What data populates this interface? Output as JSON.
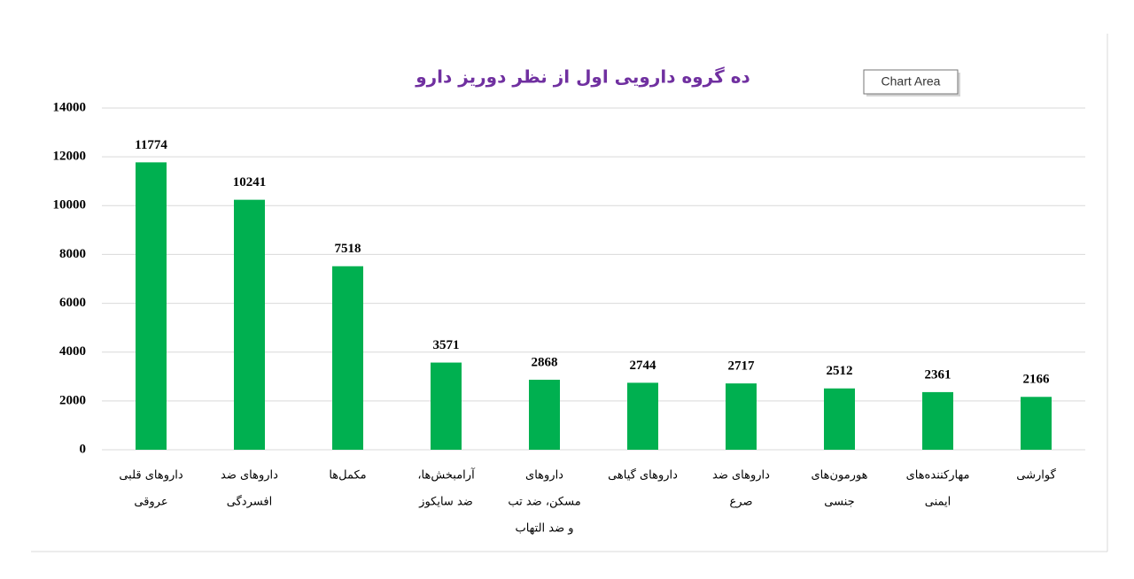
{
  "chart_data": {
    "type": "bar",
    "title": "ده گروه دارویی اول از نظر دوریز دارو",
    "tooltip": "Chart Area",
    "categories": [
      [
        "داروهای قلبی",
        "عروقی"
      ],
      [
        "داروهای ضد",
        "افسردگی"
      ],
      [
        "مکمل‌ها"
      ],
      [
        "آرامبخش‌ها،",
        "ضد سایکوز"
      ],
      [
        "داروهای",
        "مسکن، ضد تب",
        "و ضد التهاب"
      ],
      [
        "داروهای گیاهی"
      ],
      [
        "داروهای ضد",
        "صرع"
      ],
      [
        "هورمون‌های",
        "جنسی"
      ],
      [
        "مهارکننده‌های",
        "ایمنی"
      ],
      [
        "گوارشی"
      ]
    ],
    "values": [
      11774,
      10241,
      7518,
      3571,
      2868,
      2744,
      2717,
      2512,
      2361,
      2166
    ],
    "color": "#00b050",
    "ylim": [
      0,
      14000
    ],
    "yticks": [
      0,
      2000,
      4000,
      6000,
      8000,
      10000,
      12000,
      14000
    ],
    "grid": true
  }
}
